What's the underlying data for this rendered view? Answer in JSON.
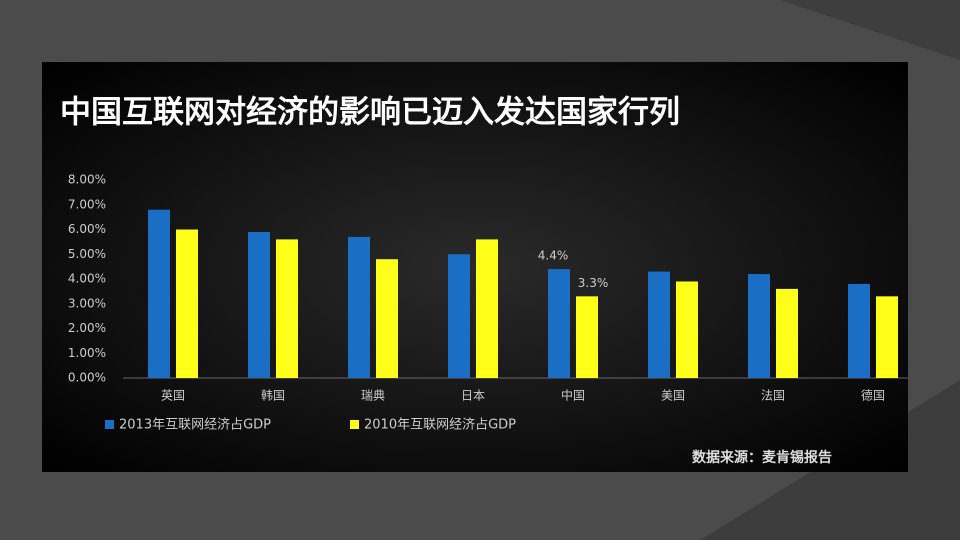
{
  "chart_data": {
    "type": "bar",
    "title": "中国互联网对经济的影响已迈入发达国家行列",
    "categories": [
      "英国",
      "韩国",
      "瑞典",
      "日本",
      "中国",
      "美国",
      "法国",
      "德国"
    ],
    "series": [
      {
        "name": "2013年互联网经济占GDP",
        "color": "#1a6fc4",
        "values": [
          6.8,
          5.9,
          5.7,
          5.0,
          4.4,
          4.3,
          4.2,
          3.8
        ],
        "value_labels": [
          null,
          null,
          null,
          null,
          "4.4%",
          null,
          null,
          null
        ]
      },
      {
        "name": "2010年互联网经济占GDP",
        "color": "#ffff1a",
        "values": [
          6.0,
          5.6,
          4.8,
          5.6,
          3.3,
          3.9,
          3.6,
          3.3
        ],
        "value_labels": [
          null,
          null,
          null,
          null,
          "3.3%",
          null,
          null,
          null
        ]
      }
    ],
    "ylim": [
      0,
      8
    ],
    "yticks": [
      {
        "value": 0,
        "label": "0.00%"
      },
      {
        "value": 1,
        "label": "1.00%"
      },
      {
        "value": 2,
        "label": "2.00%"
      },
      {
        "value": 3,
        "label": "3.00%"
      },
      {
        "value": 4,
        "label": "4.00%"
      },
      {
        "value": 5,
        "label": "5.00%"
      },
      {
        "value": 6,
        "label": "6.00%"
      },
      {
        "value": 7,
        "label": "7.00%"
      },
      {
        "value": 8,
        "label": "8.00%"
      }
    ],
    "source": "数据来源：麦肯锡报告"
  }
}
